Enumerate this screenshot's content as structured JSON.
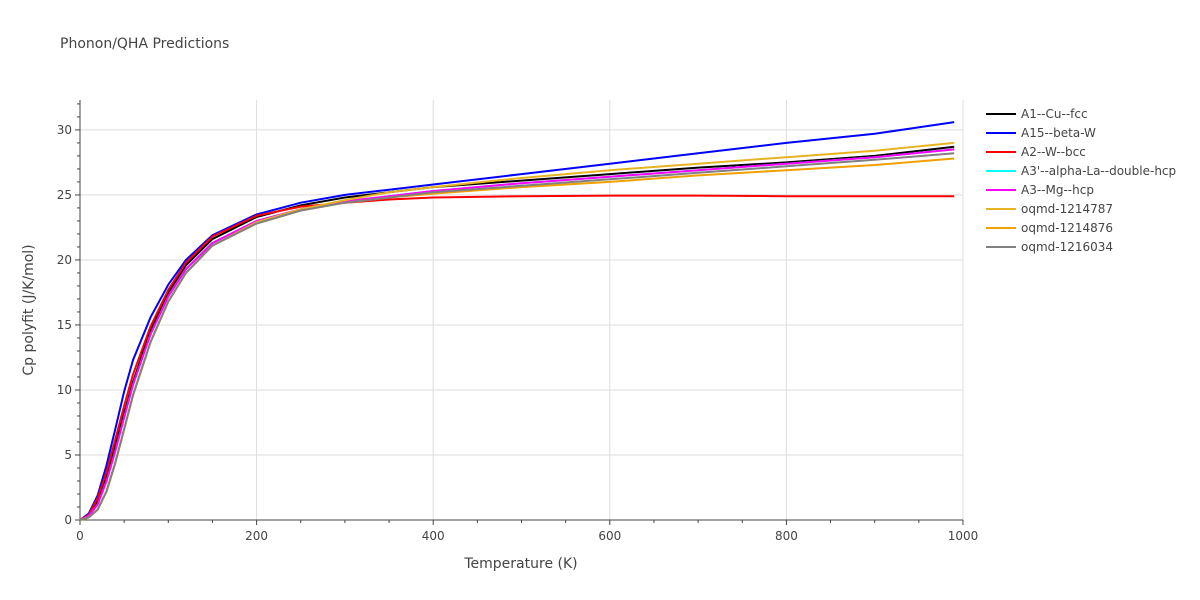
{
  "chart_data": {
    "type": "line",
    "title": "Phonon/QHA Predictions",
    "xlabel": "Temperature (K)",
    "ylabel": "Cp polyfit (J/K/mol)",
    "xlim": [
      0,
      1000
    ],
    "ylim": [
      0,
      32.3
    ],
    "xticks": [
      0,
      200,
      400,
      600,
      800,
      1000
    ],
    "yticks": [
      0,
      5,
      10,
      15,
      20,
      25,
      30
    ],
    "grid": true,
    "legend_position": "right",
    "series": [
      {
        "name": "A1--Cu--fcc",
        "color": "#000000",
        "x": [
          0,
          10,
          20,
          30,
          40,
          50,
          60,
          80,
          100,
          120,
          150,
          200,
          250,
          300,
          350,
          400,
          500,
          600,
          700,
          800,
          900,
          990
        ],
        "y": [
          0,
          0.4,
          1.5,
          3.3,
          5.7,
          8.2,
          10.6,
          14.6,
          17.5,
          19.6,
          21.6,
          23.3,
          24.2,
          24.8,
          25.2,
          25.6,
          26.1,
          26.6,
          27.1,
          27.5,
          28.0,
          28.7
        ]
      },
      {
        "name": "A15--beta-W",
        "color": "#0000ff",
        "x": [
          0,
          10,
          20,
          30,
          40,
          50,
          60,
          80,
          100,
          120,
          150,
          200,
          250,
          300,
          350,
          400,
          500,
          600,
          700,
          800,
          900,
          990
        ],
        "y": [
          0,
          0.5,
          1.9,
          4.2,
          7.0,
          9.9,
          12.3,
          15.6,
          18.1,
          20.0,
          21.9,
          23.5,
          24.4,
          25.0,
          25.4,
          25.8,
          26.6,
          27.4,
          28.2,
          29.0,
          29.7,
          30.6
        ]
      },
      {
        "name": "A2--W--bcc",
        "color": "#ff0000",
        "x": [
          0,
          10,
          20,
          30,
          40,
          50,
          60,
          80,
          100,
          120,
          150,
          200,
          250,
          300,
          350,
          400,
          500,
          600,
          700,
          800,
          900,
          990
        ],
        "y": [
          0,
          0.4,
          1.7,
          3.7,
          6.2,
          8.8,
          11.2,
          14.9,
          17.7,
          19.8,
          21.8,
          23.4,
          24.1,
          24.4,
          24.65,
          24.8,
          24.9,
          24.95,
          24.95,
          24.9,
          24.9,
          24.9
        ]
      },
      {
        "name": "A3'--alpha-La--double-hcp",
        "color": "#00ffff",
        "x": [
          0,
          10,
          20,
          30,
          40,
          50,
          60,
          80,
          100,
          120,
          150,
          200,
          250,
          300,
          350,
          400,
          500,
          600,
          700,
          800,
          900,
          990
        ],
        "y": [
          0,
          0.3,
          1.2,
          3.0,
          5.3,
          7.9,
          10.4,
          14.3,
          17.2,
          19.3,
          21.3,
          23.0,
          23.9,
          24.5,
          24.9,
          25.3,
          25.9,
          26.4,
          26.9,
          27.4,
          27.9,
          28.5
        ]
      },
      {
        "name": "A3--Mg--hcp",
        "color": "#ff00ff",
        "x": [
          0,
          10,
          20,
          30,
          40,
          50,
          60,
          80,
          100,
          120,
          150,
          200,
          250,
          300,
          350,
          400,
          500,
          600,
          700,
          800,
          900,
          990
        ],
        "y": [
          0,
          0.3,
          1.2,
          3.0,
          5.3,
          7.9,
          10.4,
          14.3,
          17.2,
          19.3,
          21.3,
          23.0,
          23.9,
          24.5,
          24.9,
          25.3,
          25.9,
          26.4,
          26.9,
          27.4,
          27.9,
          28.5
        ]
      },
      {
        "name": "oqmd-1214787",
        "color": "#e6b422",
        "x": [
          0,
          10,
          20,
          30,
          40,
          50,
          60,
          80,
          100,
          120,
          150,
          200,
          250,
          300,
          350,
          400,
          500,
          600,
          700,
          800,
          900,
          990
        ],
        "y": [
          0,
          0.2,
          0.8,
          2.2,
          4.4,
          7.0,
          9.6,
          13.7,
          16.8,
          19.0,
          21.1,
          22.9,
          23.9,
          24.6,
          25.2,
          25.6,
          26.3,
          26.9,
          27.4,
          27.9,
          28.4,
          29.0
        ]
      },
      {
        "name": "oqmd-1214876",
        "color": "#f0a000",
        "x": [
          0,
          10,
          20,
          30,
          40,
          50,
          60,
          80,
          100,
          120,
          150,
          200,
          250,
          300,
          350,
          400,
          500,
          600,
          700,
          800,
          900,
          990
        ],
        "y": [
          0,
          0.2,
          0.8,
          2.2,
          4.4,
          7.0,
          9.6,
          13.7,
          16.8,
          19.0,
          21.1,
          22.8,
          23.8,
          24.4,
          24.8,
          25.1,
          25.6,
          26.0,
          26.5,
          26.9,
          27.3,
          27.8
        ]
      },
      {
        "name": "oqmd-1216034",
        "color": "#808080",
        "x": [
          0,
          10,
          20,
          30,
          40,
          50,
          60,
          80,
          100,
          120,
          150,
          200,
          250,
          300,
          350,
          400,
          500,
          600,
          700,
          800,
          900,
          990
        ],
        "y": [
          0,
          0.2,
          0.8,
          2.2,
          4.4,
          7.0,
          9.6,
          13.7,
          16.8,
          19.0,
          21.1,
          22.8,
          23.8,
          24.4,
          24.8,
          25.2,
          25.7,
          26.2,
          26.7,
          27.2,
          27.7,
          28.2
        ]
      }
    ]
  }
}
